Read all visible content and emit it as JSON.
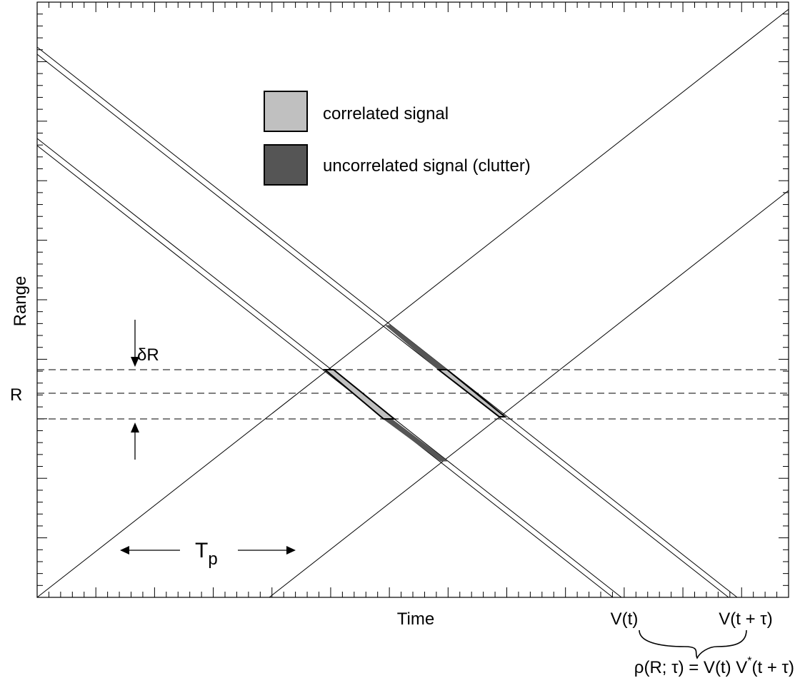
{
  "axes": {
    "x_label": "Time",
    "y_label": "Range"
  },
  "legend": {
    "items": [
      {
        "label": "correlated signal",
        "color": "#c0c0c0"
      },
      {
        "label": "uncorrelated signal (clutter)",
        "color": "#555555"
      }
    ]
  },
  "annotations": {
    "range_label": "R",
    "delta_r_label": "δR",
    "pulse_period_label": "T",
    "pulse_period_sub": "p",
    "v_t_label": "V(t)",
    "v_t_tau_label": "V(t + τ)",
    "correlation_formula": {
      "lhs": "ρ(R; τ) = V(t) V",
      "sup": "*",
      "rhs": "(t + τ)"
    }
  },
  "colors": {
    "correlated": "#c0c0c0",
    "clutter": "#555555",
    "line": "#000000"
  }
}
